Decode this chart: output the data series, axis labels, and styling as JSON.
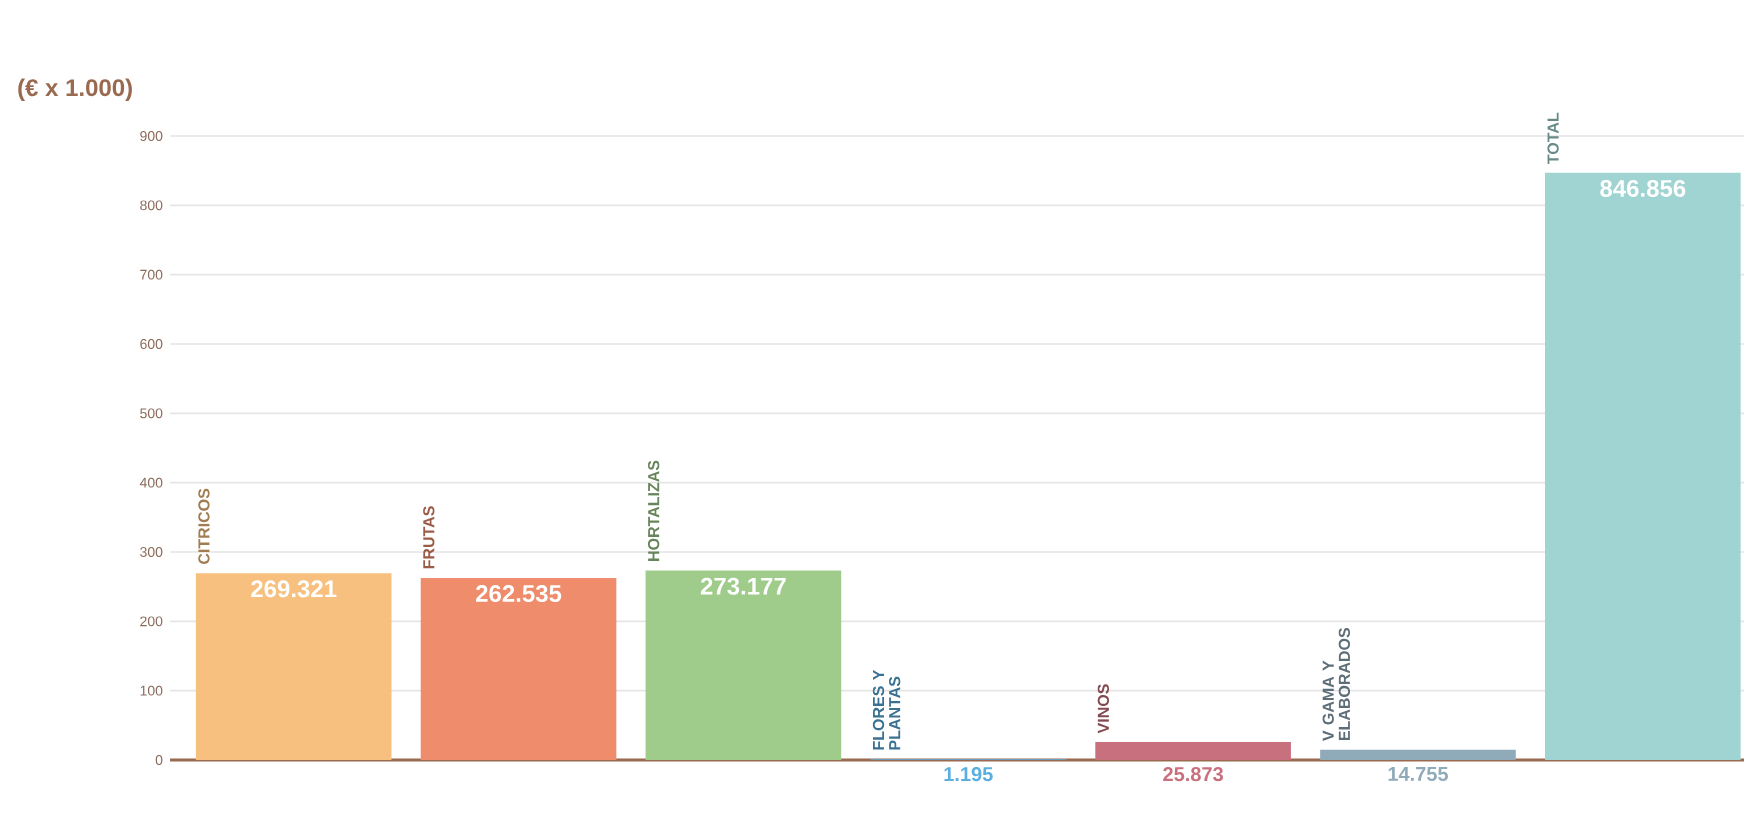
{
  "chart_data": {
    "type": "bar",
    "ylabel": "(€ x 1.000)",
    "categories": [
      "CITRICOS",
      "FRUTAS",
      "HORTALIZAS",
      "FLORES Y PLANTAS",
      "VINOS",
      "V GAMA Y ELABORADOS",
      "TOTAL"
    ],
    "values": [
      269.321,
      262.535,
      273.177,
      1.195,
      25.873,
      14.755,
      846.856
    ],
    "value_labels": [
      "269.321",
      "262.535",
      "273.177",
      "1.195",
      "25.873",
      "14.755",
      "846.856"
    ],
    "colors": [
      "#f7c07e",
      "#ee8c6c",
      "#9fcc8a",
      "#5aaee0",
      "#c9707e",
      "#8faab8",
      "#9fd4d2"
    ],
    "ylim": [
      0,
      900
    ],
    "yticks": [
      0,
      100,
      200,
      300,
      400,
      500,
      600,
      700,
      800,
      900
    ],
    "grid": "y"
  }
}
